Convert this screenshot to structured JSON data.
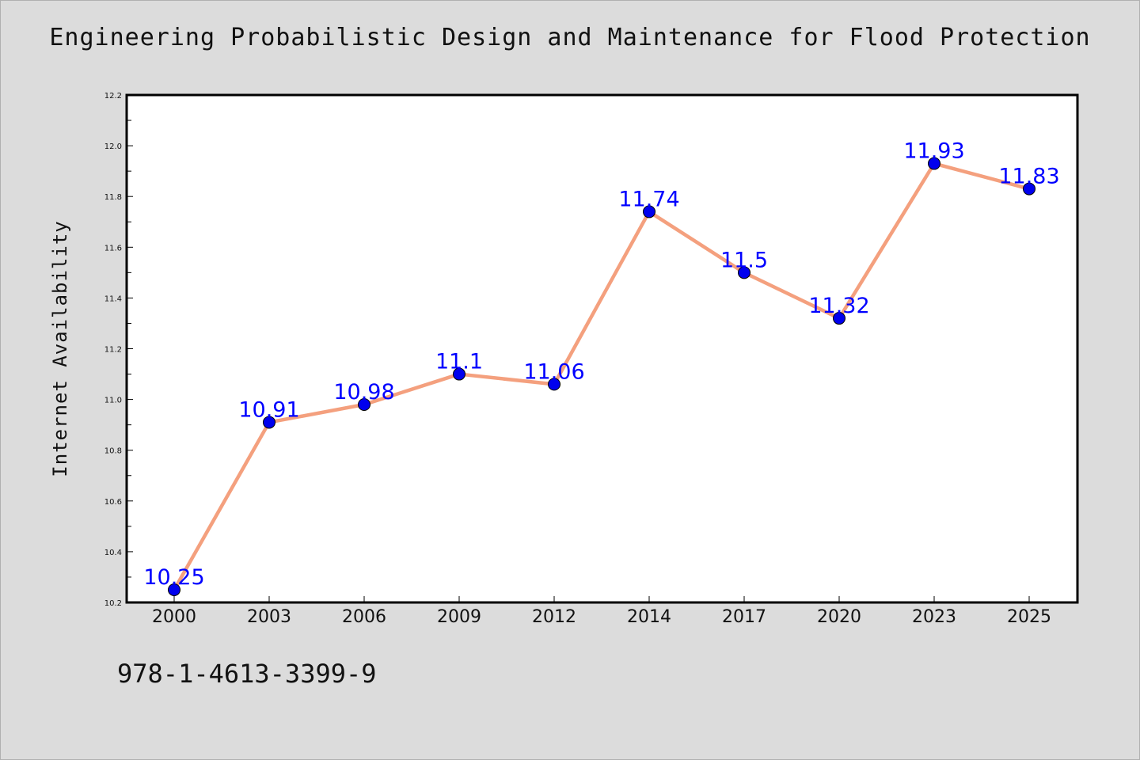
{
  "book": {
    "title": "Engineering Probabilistic Design and Maintenance for Flood Protection",
    "isbn": "978-1-4613-3399-9"
  },
  "chart_data": {
    "type": "line",
    "title": "Engineering Probabilistic Design and Maintenance for Flood Protection",
    "xlabel": "",
    "ylabel": "Internet Availability",
    "categories": [
      "2000",
      "2003",
      "2006",
      "2009",
      "2012",
      "2014",
      "2017",
      "2020",
      "2023",
      "2025"
    ],
    "series": [
      {
        "values": [
          10.25,
          10.91,
          10.98,
          11.1,
          11.06,
          11.74,
          11.5,
          11.32,
          11.93,
          11.83
        ],
        "data_labels": [
          "10.25",
          "10.91",
          "10.98",
          "11.1",
          "11.06",
          "11.74",
          "11.5",
          "11.32",
          "11.93",
          "11.83"
        ],
        "line_color": "#f4a07e",
        "marker_color": "#0000ee"
      }
    ],
    "ylim": [
      10.2,
      12.2
    ],
    "yticks": [
      "10.2",
      "10.4",
      "10.6",
      "10.8",
      "11.0",
      "11.2",
      "11.4",
      "11.6",
      "11.8",
      "12.0",
      "12.2"
    ],
    "grid": false,
    "legend": "none",
    "label_color": "#0000ff",
    "background": "#dcdcdc",
    "plot_background": "#ffffff"
  }
}
